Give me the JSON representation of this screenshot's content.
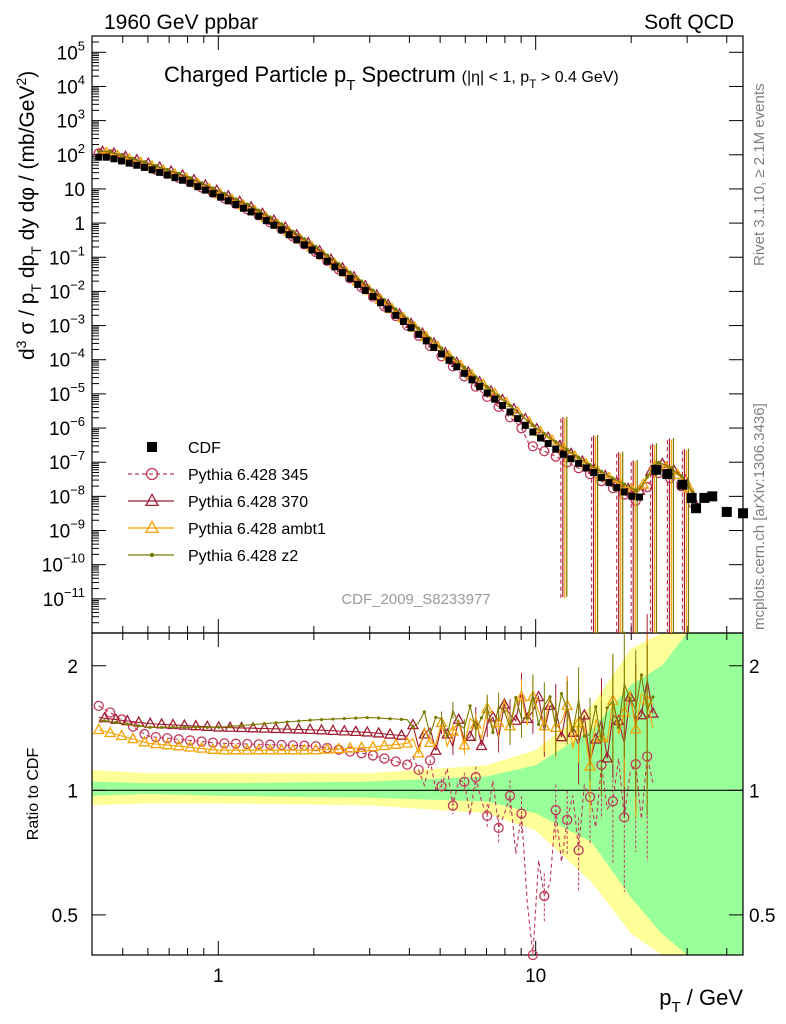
{
  "header": {
    "left": "1960 GeV ppbar",
    "right": "Soft QCD"
  },
  "side_labels": {
    "rivet": "Rivet 3.1.10, ≥ 2.1M events",
    "mcplots": "mcplots.cern.ch [arXiv:1306.3436]"
  },
  "analysis_id": "CDF_2009_S8233977",
  "chart_data": {
    "type": "scatter",
    "title": "Charged Particle p_T Spectrum",
    "title_main": "Charged Particle p",
    "title_sub": "T",
    "title_tail": " Spectrum",
    "title_cut": "(|η| < 1, p",
    "title_cut_sub": "T",
    "title_cut_tail": " > 0.4 GeV)",
    "xlabel": "p_T / GeV",
    "xlabel_main": "p",
    "xlabel_sub": "T",
    "xlabel_tail": " / GeV",
    "ylabel": "d³σ / p_T dp_T dy dφ / (mb/GeV²)",
    "ratio_ylabel": "Ratio to CDF",
    "x_scale": "log",
    "xlim": [
      0.4,
      45
    ],
    "ylim": [
      1e-12,
      300000.0
    ],
    "ratio_ylim": [
      0.4,
      2.4
    ],
    "x_ticks": [
      {
        "v": 1,
        "label": "1"
      },
      {
        "v": 10,
        "label": "10"
      }
    ],
    "y_ticks": [
      {
        "v": 100000,
        "base": "10",
        "exp": "5"
      },
      {
        "v": 10000,
        "base": "10",
        "exp": "4"
      },
      {
        "v": 1000,
        "base": "10",
        "exp": "3"
      },
      {
        "v": 100,
        "base": "10",
        "exp": "2"
      },
      {
        "v": 10,
        "base": "10",
        "exp": ""
      },
      {
        "v": 1,
        "base": "1",
        "exp": ""
      },
      {
        "v": 0.1,
        "base": "10",
        "exp": "−1"
      },
      {
        "v": 0.01,
        "base": "10",
        "exp": "−2"
      },
      {
        "v": 0.001,
        "base": "10",
        "exp": "−3"
      },
      {
        "v": 0.0001,
        "base": "10",
        "exp": "−4"
      },
      {
        "v": 1e-05,
        "base": "10",
        "exp": "−5"
      },
      {
        "v": 1e-06,
        "base": "10",
        "exp": "−6"
      },
      {
        "v": 1e-07,
        "base": "10",
        "exp": "−7"
      },
      {
        "v": 1e-08,
        "base": "10",
        "exp": "−8"
      },
      {
        "v": 1e-09,
        "base": "10",
        "exp": "−9"
      },
      {
        "v": 1e-10,
        "base": "10",
        "exp": "−10"
      },
      {
        "v": 1e-11,
        "base": "10",
        "exp": "−11"
      }
    ],
    "ratio_ticks": [
      {
        "v": 0.5,
        "label": "0.5"
      },
      {
        "v": 1,
        "label": "1"
      },
      {
        "v": 2,
        "label": "2"
      }
    ],
    "cdf_points": [
      [
        0.45,
        85
      ],
      [
        0.6,
        40
      ],
      [
        0.8,
        16
      ],
      [
        1.0,
        6.2
      ],
      [
        1.3,
        1.9
      ],
      [
        1.6,
        0.6
      ],
      [
        2.0,
        0.15
      ],
      [
        2.5,
        0.032
      ],
      [
        3.0,
        0.0085
      ],
      [
        3.5,
        0.0026
      ],
      [
        4.0,
        0.00095
      ],
      [
        5.0,
        0.00016
      ],
      [
        6.0,
        3.8e-05
      ],
      [
        7.0,
        1.1e-05
      ],
      [
        8.0,
        4e-06
      ],
      [
        10.0,
        6.5e-07
      ],
      [
        12.0,
        1.9e-07
      ],
      [
        15.0,
        5.5e-08
      ],
      [
        18.0,
        1.8e-08
      ],
      [
        21.0,
        8e-09
      ],
      [
        24.0,
        6e-08
      ],
      [
        26.0,
        4.5e-08
      ],
      [
        29.0,
        2.2e-08
      ],
      [
        31.0,
        9e-09
      ],
      [
        32.0,
        4.5e-09
      ],
      [
        34.0,
        9e-09
      ],
      [
        36.0,
        1e-08
      ],
      [
        40.0,
        3.5e-09
      ],
      [
        45.0,
        3.2e-09
      ]
    ],
    "series": [
      {
        "name": "Pythia 6.428 345",
        "color": "#c0395a",
        "marker": "circle",
        "dashed": true,
        "ratio": [
          [
            0.42,
            1.6
          ],
          [
            0.6,
            1.35
          ],
          [
            1.0,
            1.3
          ],
          [
            2.0,
            1.28
          ],
          [
            3.0,
            1.22
          ],
          [
            4.0,
            1.15
          ],
          [
            5.0,
            1.05
          ],
          [
            7.0,
            0.95
          ],
          [
            9.0,
            0.82
          ],
          [
            9.5,
            0.42
          ],
          [
            12.0,
            0.8
          ],
          [
            15.0,
            0.95
          ],
          [
            20.0,
            1.05
          ]
        ]
      },
      {
        "name": "Pythia 6.428 370",
        "color": "#a01e32",
        "marker": "triangle",
        "dashed": false,
        "ratio": [
          [
            0.42,
            1.5
          ],
          [
            0.6,
            1.45
          ],
          [
            1.0,
            1.42
          ],
          [
            2.0,
            1.4
          ],
          [
            3.0,
            1.38
          ],
          [
            4.0,
            1.35
          ],
          [
            5.0,
            1.35
          ],
          [
            7.0,
            1.4
          ],
          [
            9.0,
            1.6
          ],
          [
            12.0,
            1.5
          ],
          [
            15.0,
            1.3
          ],
          [
            20.0,
            1.5
          ],
          [
            25.0,
            1.8
          ]
        ]
      },
      {
        "name": "Pythia 6.428 ambt1",
        "color": "#f5a200",
        "marker": "triangle",
        "dashed": false,
        "ratio": [
          [
            0.42,
            1.4
          ],
          [
            0.6,
            1.3
          ],
          [
            1.0,
            1.25
          ],
          [
            2.0,
            1.25
          ],
          [
            3.0,
            1.27
          ],
          [
            4.0,
            1.3
          ],
          [
            5.0,
            1.35
          ],
          [
            7.0,
            1.45
          ],
          [
            9.0,
            1.6
          ],
          [
            12.0,
            1.5
          ],
          [
            15.0,
            1.3
          ],
          [
            20.0,
            1.6
          ]
        ]
      },
      {
        "name": "Pythia 6.428 z2",
        "color": "#7a7a00",
        "marker": "dot",
        "dashed": false,
        "ratio": [
          [
            0.42,
            1.48
          ],
          [
            0.6,
            1.42
          ],
          [
            1.0,
            1.42
          ],
          [
            2.0,
            1.48
          ],
          [
            3.0,
            1.5
          ],
          [
            4.0,
            1.48
          ],
          [
            5.0,
            1.45
          ],
          [
            7.0,
            1.5
          ],
          [
            9.0,
            1.55
          ],
          [
            12.0,
            1.6
          ],
          [
            15.0,
            1.4
          ],
          [
            20.0,
            1.7
          ]
        ]
      }
    ],
    "main_model_offsets": [
      1.3,
      1.45,
      1.35,
      1.5
    ],
    "bands": [
      [
        0.4,
        0.92,
        1.12,
        0.97,
        1.05
      ],
      [
        0.6,
        0.93,
        1.1,
        0.98,
        1.04
      ],
      [
        1.0,
        0.93,
        1.1,
        0.97,
        1.04
      ],
      [
        3.0,
        0.92,
        1.1,
        0.96,
        1.05
      ],
      [
        7.0,
        0.88,
        1.15,
        0.94,
        1.08
      ],
      [
        10.0,
        0.8,
        1.25,
        0.88,
        1.15
      ],
      [
        15.0,
        0.6,
        1.6,
        0.75,
        1.4
      ],
      [
        20.0,
        0.45,
        2.2,
        0.55,
        1.8
      ],
      [
        25.0,
        0.35,
        2.4,
        0.45,
        2.0
      ],
      [
        30.0,
        0.3,
        2.4,
        0.35,
        2.4
      ],
      [
        45.0,
        0.3,
        2.4,
        0.3,
        2.4
      ]
    ],
    "legend": [
      {
        "label": "CDF",
        "marker": "square",
        "color": "#000000"
      },
      {
        "label": "Pythia 6.428 345",
        "marker": "circle",
        "color": "#c0395a",
        "dashed": true
      },
      {
        "label": "Pythia 6.428 370",
        "marker": "triangle",
        "color": "#a01e32"
      },
      {
        "label": "Pythia 6.428 ambt1",
        "marker": "triangle",
        "color": "#f5a200"
      },
      {
        "label": "Pythia 6.428 z2",
        "marker": "dot",
        "color": "#7a7a00"
      }
    ],
    "band_colors": {
      "outer": "#ffff99",
      "inner": "#99ff99"
    }
  }
}
